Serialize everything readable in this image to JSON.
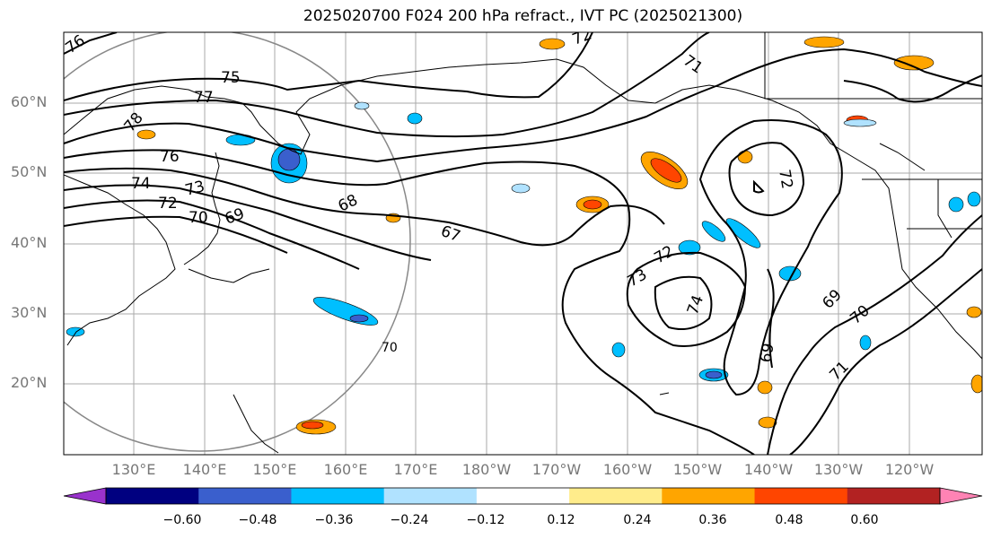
{
  "title": "2025020700 F024 200 hPa refract., IVT PC (2025021300)",
  "lat_labels": [
    "60°N",
    "50°N",
    "40°N",
    "30°N",
    "20°N"
  ],
  "lon_labels": [
    "130°E",
    "140°E",
    "150°E",
    "160°E",
    "170°E",
    "180°W",
    "170°W",
    "160°W",
    "150°W",
    "140°W",
    "130°W",
    "120°W"
  ],
  "contour_labels": [
    "76",
    "75",
    "77",
    "78",
    "76",
    "74",
    "73",
    "72",
    "70",
    "69",
    "68",
    "67",
    "73",
    "72",
    "74",
    "69",
    "70",
    "71",
    "70",
    "69",
    "72",
    "72",
    "71"
  ],
  "colorbar": {
    "ticks": [
      "−0.60",
      "−0.48",
      "−0.36",
      "−0.24",
      "−0.12",
      "0.12",
      "0.24",
      "0.36",
      "0.48",
      "0.60"
    ],
    "colors": [
      "#9932cc",
      "#000080",
      "#3a5fcd",
      "#00bfff",
      "#b0e2ff",
      "#ffffff",
      "#ffec8b",
      "#ffa500",
      "#ff4500",
      "#b22222",
      "#ff83b4"
    ]
  }
}
